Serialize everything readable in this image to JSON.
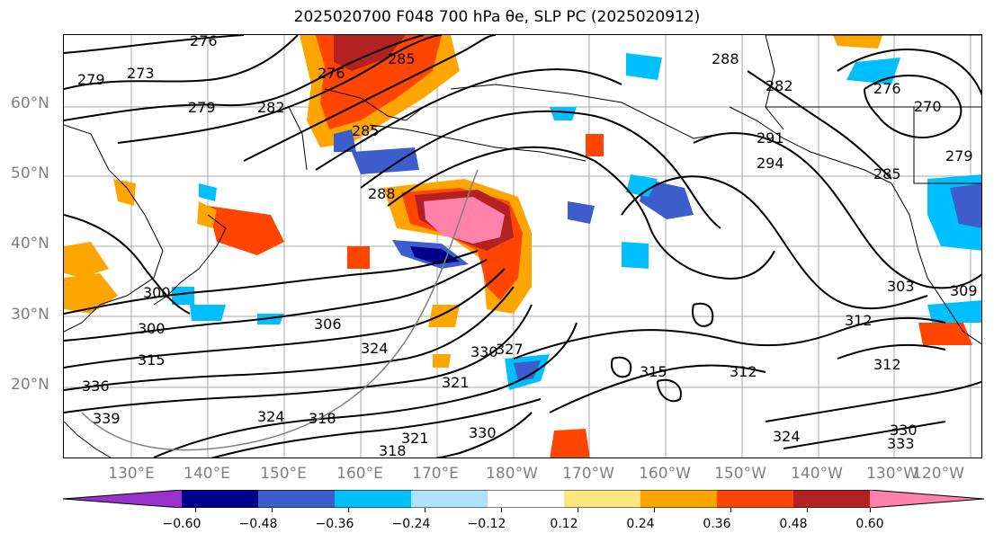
{
  "title": "2025020700 F048 700 hPa θe, SLP PC (2025020912)",
  "map": {
    "lat_labels": [
      "60°N",
      "50°N",
      "40°N",
      "30°N",
      "20°N"
    ],
    "lon_labels": [
      "130°E",
      "140°E",
      "150°E",
      "160°E",
      "170°E",
      "180°W",
      "170°W",
      "160°W",
      "150°W",
      "140°W",
      "130°W",
      "120°W"
    ],
    "contour_labels": [
      "276",
      "273",
      "279",
      "279",
      "282",
      "276",
      "285",
      "285",
      "288",
      "282",
      "291",
      "294",
      "285",
      "276",
      "270",
      "279",
      "288",
      "300",
      "306",
      "312",
      "303",
      "309",
      "300",
      "315",
      "324",
      "330",
      "327",
      "321",
      "315",
      "312",
      "312",
      "318",
      "324",
      "321",
      "336",
      "324",
      "330",
      "333",
      "330",
      "339",
      "318"
    ]
  },
  "colorbar": {
    "colors": [
      "#9932cc",
      "#00008b",
      "#3d5dcc",
      "#00bfff",
      "#b0e2ff",
      "#ffffff",
      "#ffe680",
      "#ffa500",
      "#ff4500",
      "#b22222",
      "#ff82ab"
    ],
    "ticks": [
      "−0.60",
      "−0.48",
      "−0.36",
      "−0.24",
      "−0.12",
      "0.12",
      "0.24",
      "0.36",
      "0.48",
      "0.60"
    ]
  }
}
